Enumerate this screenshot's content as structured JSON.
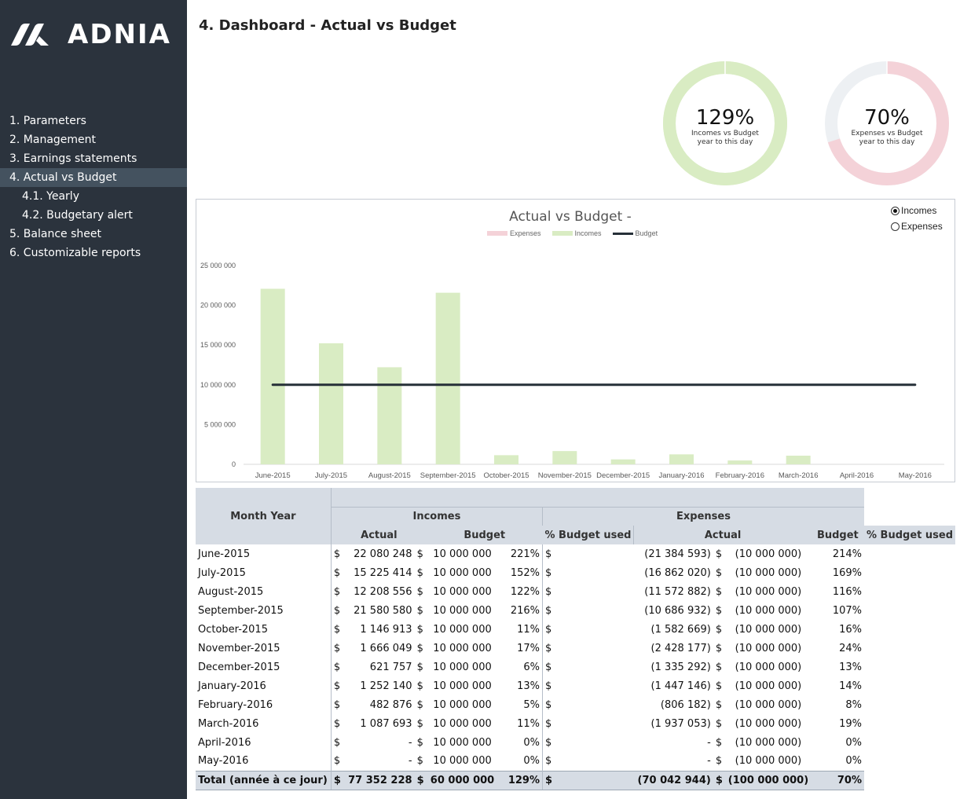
{
  "app": {
    "brand": "ADNIA",
    "logo_icon": "adnia-logo-icon"
  },
  "sidebar": {
    "items": [
      {
        "label": "1. Parameters",
        "active": false,
        "sub": false
      },
      {
        "label": "2. Management",
        "active": false,
        "sub": false
      },
      {
        "label": "3. Earnings statements",
        "active": false,
        "sub": false
      },
      {
        "label": "4. Actual vs Budget",
        "active": true,
        "sub": false
      },
      {
        "label": "4.1. Yearly",
        "active": false,
        "sub": true
      },
      {
        "label": "4.2. Budgetary alert",
        "active": false,
        "sub": true
      },
      {
        "label": "5. Balance sheet",
        "active": false,
        "sub": false
      },
      {
        "label": "6. Customizable reports",
        "active": false,
        "sub": false
      }
    ]
  },
  "header": {
    "title": "4. Dashboard - Actual vs Budget"
  },
  "gauges": [
    {
      "value_label": "129%",
      "value": 129,
      "caption_line1": "Incomes vs Budget",
      "caption_line2": "year to this day",
      "color": "#d9ecc3",
      "track": "#d9ecc3"
    },
    {
      "value_label": "70%",
      "value": 70,
      "caption_line1": "Expenses vs Budget",
      "caption_line2": "year to this day",
      "color": "#f4d2d8",
      "track": "#edf0f3"
    }
  ],
  "chart_controls": {
    "options": [
      {
        "label": "Incomes",
        "selected": true
      },
      {
        "label": "Expenses",
        "selected": false
      }
    ]
  },
  "colors": {
    "incomes": "#d9ecc3",
    "expenses": "#f4d2d8",
    "budget": "#263038",
    "header_bg": "#d6dce4",
    "sidebar_bg": "#2b333d"
  },
  "chart_data": {
    "type": "bar",
    "title": "Actual vs Budget -",
    "xlabel": "",
    "ylabel": "",
    "legend": [
      {
        "name": "Expenses",
        "kind": "bar"
      },
      {
        "name": "Incomes",
        "kind": "bar"
      },
      {
        "name": "Budget",
        "kind": "line"
      }
    ],
    "legend_position": "top-center",
    "categories": [
      "June-2015",
      "July-2015",
      "August-2015",
      "September-2015",
      "October-2015",
      "November-2015",
      "December-2015",
      "January-2016",
      "February-2016",
      "March-2016",
      "April-2016",
      "May-2016"
    ],
    "series": [
      {
        "name": "Incomes",
        "type": "bar",
        "values": [
          22080248,
          15225414,
          12208556,
          21580580,
          1146913,
          1666049,
          621757,
          1252140,
          482876,
          1087693,
          0,
          0
        ]
      },
      {
        "name": "Budget",
        "type": "line",
        "values": [
          10000000,
          10000000,
          10000000,
          10000000,
          10000000,
          10000000,
          10000000,
          10000000,
          10000000,
          10000000,
          10000000,
          10000000
        ]
      }
    ],
    "yticks": [
      0,
      5000000,
      10000000,
      15000000,
      20000000,
      25000000
    ],
    "ytick_labels": [
      "0",
      "5 000 000",
      "10 000 000",
      "15 000 000",
      "20 000 000",
      "25 000 000"
    ],
    "ylim": [
      0,
      25000000
    ],
    "grid": false
  },
  "table": {
    "month_header": "Month Year",
    "incomes_header": "Incomes",
    "expenses_header": "Expenses",
    "sub_headers": {
      "actual": "Actual",
      "budget": "Budget",
      "pct": "% Budget used"
    },
    "currency": "$",
    "rows": [
      {
        "month": "June-2015",
        "inc_actual": "22 080 248",
        "inc_budget": "10 000 000",
        "inc_pct": "221%",
        "exp_actual": "(21 384 593)",
        "exp_budget": "(10 000 000)",
        "exp_pct": "214%"
      },
      {
        "month": "July-2015",
        "inc_actual": "15 225 414",
        "inc_budget": "10 000 000",
        "inc_pct": "152%",
        "exp_actual": "(16 862 020)",
        "exp_budget": "(10 000 000)",
        "exp_pct": "169%"
      },
      {
        "month": "August-2015",
        "inc_actual": "12 208 556",
        "inc_budget": "10 000 000",
        "inc_pct": "122%",
        "exp_actual": "(11 572 882)",
        "exp_budget": "(10 000 000)",
        "exp_pct": "116%"
      },
      {
        "month": "September-2015",
        "inc_actual": "21 580 580",
        "inc_budget": "10 000 000",
        "inc_pct": "216%",
        "exp_actual": "(10 686 932)",
        "exp_budget": "(10 000 000)",
        "exp_pct": "107%"
      },
      {
        "month": "October-2015",
        "inc_actual": "1 146 913",
        "inc_budget": "10 000 000",
        "inc_pct": "11%",
        "exp_actual": "(1 582 669)",
        "exp_budget": "(10 000 000)",
        "exp_pct": "16%"
      },
      {
        "month": "November-2015",
        "inc_actual": "1 666 049",
        "inc_budget": "10 000 000",
        "inc_pct": "17%",
        "exp_actual": "(2 428 177)",
        "exp_budget": "(10 000 000)",
        "exp_pct": "24%"
      },
      {
        "month": "December-2015",
        "inc_actual": "621 757",
        "inc_budget": "10 000 000",
        "inc_pct": "6%",
        "exp_actual": "(1 335 292)",
        "exp_budget": "(10 000 000)",
        "exp_pct": "13%"
      },
      {
        "month": "January-2016",
        "inc_actual": "1 252 140",
        "inc_budget": "10 000 000",
        "inc_pct": "13%",
        "exp_actual": "(1 447 146)",
        "exp_budget": "(10 000 000)",
        "exp_pct": "14%"
      },
      {
        "month": "February-2016",
        "inc_actual": "482 876",
        "inc_budget": "10 000 000",
        "inc_pct": "5%",
        "exp_actual": "(806 182)",
        "exp_budget": "(10 000 000)",
        "exp_pct": "8%"
      },
      {
        "month": "March-2016",
        "inc_actual": "1 087 693",
        "inc_budget": "10 000 000",
        "inc_pct": "11%",
        "exp_actual": "(1 937 053)",
        "exp_budget": "(10 000 000)",
        "exp_pct": "19%"
      },
      {
        "month": "April-2016",
        "inc_actual": "-",
        "inc_budget": "10 000 000",
        "inc_pct": "0%",
        "exp_actual": "-",
        "exp_budget": "(10 000 000)",
        "exp_pct": "0%"
      },
      {
        "month": "May-2016",
        "inc_actual": "-",
        "inc_budget": "10 000 000",
        "inc_pct": "0%",
        "exp_actual": "-",
        "exp_budget": "(10 000 000)",
        "exp_pct": "0%"
      }
    ],
    "total": {
      "month": "Total (année à ce jour)",
      "inc_actual": "77 352 228",
      "inc_budget": "60 000 000",
      "inc_pct": "129%",
      "exp_actual": "(70 042 944)",
      "exp_budget": "(100 000 000)",
      "exp_pct": "70%"
    }
  }
}
